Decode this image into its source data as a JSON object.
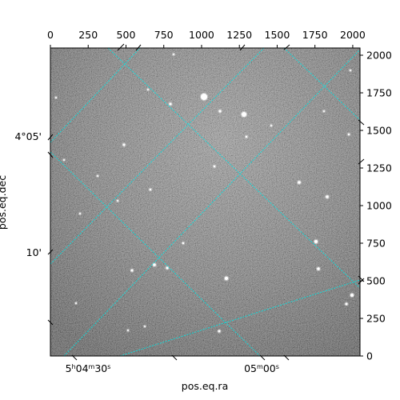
{
  "chart_data": {
    "type": "image",
    "xlabel": "pos.eq.ra",
    "ylabel": "pos.eq.dec",
    "pixel_axes": {
      "x_range": [
        0,
        2048
      ],
      "y_range": [
        0,
        2048
      ],
      "top_ticks": [
        0,
        250,
        500,
        750,
        1000,
        1250,
        1500,
        1750,
        2000
      ],
      "right_ticks": [
        0,
        250,
        500,
        750,
        1000,
        1250,
        1500,
        1750,
        2000
      ]
    },
    "ra_ticks": [
      {
        "label_html": "5<tspan baseline-shift=\"super\" font-size=\"8\">h</tspan>04<tspan baseline-shift=\"super\" font-size=\"8\">m</tspan>30<tspan baseline-shift=\"super\" font-size=\"8\">s</tspan>"
      },
      {
        "label_html": "05<tspan baseline-shift=\"super\" font-size=\"8\">m</tspan>00<tspan baseline-shift=\"super\" font-size=\"8\">s</tspan>"
      }
    ],
    "dec_ticks": [
      "4°05'",
      "10'"
    ],
    "grid": true,
    "grid_color": "#00e5e5",
    "colormap": "gray"
  }
}
